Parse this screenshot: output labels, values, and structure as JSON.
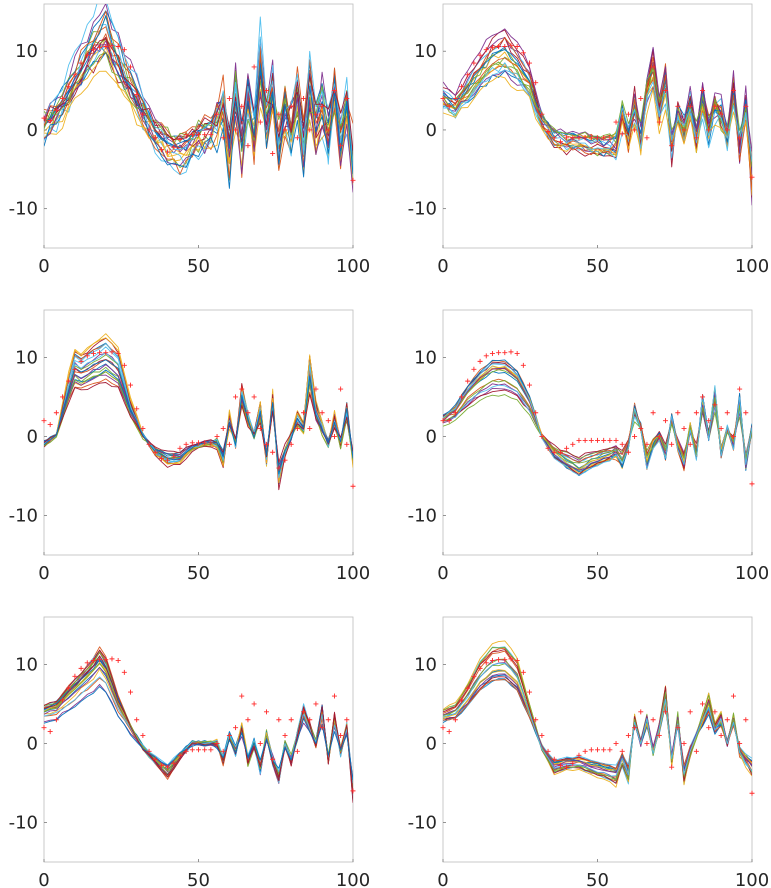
{
  "chart_data": [
    {
      "type": "line",
      "panel": "top-left",
      "xlim": [
        0,
        100
      ],
      "ylim": [
        -15,
        16
      ],
      "xticks": [
        "0",
        "50",
        "100"
      ],
      "yticks": [
        "10",
        "0",
        "-10"
      ],
      "ytick_values": [
        10,
        0,
        -10
      ],
      "n_series": 22,
      "spread": 3.4,
      "markers": "red plus",
      "observed": {
        "x": [
          0,
          2,
          4,
          6,
          8,
          10,
          12,
          14,
          16,
          18,
          20,
          22,
          24,
          26,
          28,
          30,
          32,
          34,
          36,
          38,
          40,
          42,
          44,
          46,
          48,
          50,
          52,
          54,
          56,
          58,
          60,
          62,
          64,
          66,
          68,
          70,
          72,
          74,
          76,
          78,
          80,
          82,
          84,
          86,
          88,
          90,
          92,
          94,
          96,
          98,
          100
        ],
        "y": [
          1.5,
          1.2,
          2.5,
          4,
          5.5,
          7,
          8.5,
          9.5,
          10.2,
          10.5,
          10.6,
          10.7,
          10.6,
          10.2,
          8,
          4.5,
          2,
          0,
          -1,
          -2.5,
          -2.8,
          -2.2,
          -1.2,
          -0.6,
          -0.6,
          -0.6,
          -0.6,
          -0.6,
          2,
          -1,
          4,
          0,
          3,
          -2,
          8,
          1,
          5,
          -3,
          2,
          0,
          3,
          -1,
          4,
          0,
          2,
          3,
          0,
          5,
          -2,
          4,
          -6.4
        ]
      },
      "mean": {
        "x": [
          0,
          5,
          10,
          15,
          18,
          20,
          22,
          25,
          30,
          35,
          40,
          45,
          50,
          55,
          58,
          60,
          62,
          64,
          66,
          68,
          70,
          72,
          74,
          76,
          78,
          80,
          82,
          84,
          86,
          88,
          90,
          92,
          94,
          96,
          98,
          100
        ],
        "y": [
          0,
          2.5,
          6,
          9.5,
          11.5,
          12,
          10,
          7.5,
          4,
          0,
          -2,
          -3,
          -1,
          -0.5,
          3,
          -3,
          5,
          -2,
          4,
          -1,
          8,
          0,
          5,
          -3,
          2,
          0,
          4,
          -2,
          5,
          0,
          3,
          -1,
          5,
          -2,
          3,
          -4
        ]
      }
    },
    {
      "type": "line",
      "panel": "top-right",
      "xlim": [
        0,
        100
      ],
      "ylim": [
        -15,
        16
      ],
      "xticks": [
        "0",
        "50",
        "100"
      ],
      "yticks": [
        "10",
        "0",
        "-10"
      ],
      "ytick_values": [
        10,
        0,
        -10
      ],
      "n_series": 20,
      "spread": 1.8,
      "markers": "red plus",
      "observed": {
        "x": [
          0,
          2,
          4,
          6,
          8,
          10,
          12,
          14,
          16,
          18,
          20,
          22,
          24,
          26,
          28,
          30,
          32,
          34,
          36,
          38,
          40,
          42,
          44,
          46,
          48,
          50,
          52,
          54,
          56,
          58,
          60,
          62,
          64,
          66,
          68,
          70,
          72,
          74,
          76,
          78,
          80,
          82,
          84,
          86,
          88,
          90,
          92,
          94,
          96,
          98,
          100
        ],
        "y": [
          4,
          3,
          4,
          5.5,
          7,
          8.5,
          9.5,
          10.2,
          10.5,
          10.6,
          10.6,
          10.7,
          10.6,
          9.8,
          8.5,
          6,
          2,
          -0.2,
          -1,
          -1.5,
          -1,
          -1,
          -1,
          -1,
          -1,
          -1,
          -1,
          -1,
          1,
          -0.5,
          2,
          0,
          4,
          -1,
          8,
          1,
          5,
          -2,
          3,
          0,
          3,
          -1,
          5,
          0,
          3,
          2,
          0,
          5,
          -1,
          3,
          -6
        ]
      },
      "mean": {
        "x": [
          0,
          4,
          8,
          12,
          16,
          20,
          24,
          28,
          32,
          36,
          40,
          44,
          48,
          52,
          56,
          58,
          60,
          62,
          64,
          66,
          68,
          70,
          72,
          74,
          76,
          78,
          80,
          82,
          84,
          86,
          88,
          90,
          92,
          94,
          96,
          98,
          100
        ],
        "y": [
          4,
          3,
          5,
          7,
          9,
          9.5,
          8,
          6,
          1,
          -1,
          -1.5,
          -1.5,
          -2,
          -2,
          -2,
          2,
          -1,
          3,
          -1,
          5,
          8,
          2,
          6,
          -2,
          2,
          0,
          3,
          -1,
          4,
          0,
          3,
          2,
          -1,
          5,
          -2,
          3,
          -6
        ]
      }
    },
    {
      "type": "line",
      "panel": "middle-left",
      "xlim": [
        0,
        100
      ],
      "ylim": [
        -15,
        16
      ],
      "xticks": [
        "0",
        "50",
        "100"
      ],
      "yticks": [
        "10",
        "0",
        "-10"
      ],
      "ytick_values": [
        10,
        0,
        -10
      ],
      "n_series": 22,
      "spread": 0.7,
      "markers": "red plus",
      "observed": {
        "x": [
          0,
          2,
          4,
          6,
          8,
          10,
          12,
          14,
          16,
          18,
          20,
          22,
          24,
          26,
          28,
          30,
          32,
          34,
          36,
          38,
          40,
          42,
          44,
          46,
          48,
          50,
          52,
          54,
          56,
          58,
          60,
          62,
          64,
          66,
          68,
          70,
          72,
          74,
          76,
          78,
          80,
          82,
          84,
          86,
          88,
          90,
          92,
          94,
          96,
          98,
          100
        ],
        "y": [
          2,
          1.5,
          3,
          5,
          7,
          8.5,
          9.5,
          10.2,
          10.5,
          10.6,
          10.6,
          10.7,
          10.5,
          9,
          6.5,
          3.5,
          1,
          -1,
          -2,
          -2.8,
          -3,
          -2.5,
          -1.5,
          -1,
          -0.8,
          -0.8,
          -0.8,
          -0.8,
          0,
          1,
          -1,
          5,
          6,
          3,
          5,
          1,
          -1,
          -2,
          -4,
          -3,
          -1,
          1,
          3,
          1,
          6,
          3,
          2,
          0,
          6,
          -1,
          -6.3
        ]
      },
      "mean": {
        "x": [
          0,
          4,
          8,
          10,
          12,
          16,
          20,
          24,
          28,
          32,
          36,
          40,
          44,
          48,
          52,
          56,
          58,
          60,
          62,
          64,
          66,
          68,
          70,
          72,
          74,
          76,
          78,
          80,
          82,
          84,
          86,
          88,
          90,
          92,
          94,
          96,
          98,
          100
        ],
        "y": [
          -1,
          0,
          6,
          8.5,
          8,
          9,
          9.8,
          8.5,
          3.5,
          0,
          -2,
          -3,
          -2.8,
          -1.5,
          -1,
          -1,
          -3,
          2,
          -1,
          5,
          2,
          0,
          3,
          -3,
          4,
          -5,
          -2,
          0,
          2,
          1,
          8,
          3,
          1,
          -1,
          2,
          -1,
          3,
          -3
        ]
      }
    },
    {
      "type": "line",
      "panel": "middle-right",
      "xlim": [
        0,
        100
      ],
      "ylim": [
        -15,
        16
      ],
      "xticks": [
        "0",
        "50",
        "100"
      ],
      "yticks": [
        "10",
        "0",
        "-10"
      ],
      "ytick_values": [
        10,
        0,
        -10
      ],
      "n_series": 20,
      "spread": 0.6,
      "markers": "red plus",
      "observed": {
        "x": [
          0,
          2,
          4,
          6,
          8,
          10,
          12,
          14,
          16,
          18,
          20,
          22,
          24,
          26,
          28,
          30,
          32,
          34,
          36,
          38,
          40,
          42,
          44,
          46,
          48,
          50,
          52,
          54,
          56,
          58,
          60,
          62,
          64,
          66,
          68,
          70,
          72,
          74,
          76,
          78,
          80,
          82,
          84,
          86,
          88,
          90,
          92,
          94,
          96,
          98,
          100
        ],
        "y": [
          2,
          2,
          3,
          5,
          7,
          8.5,
          9.5,
          10.2,
          10.5,
          10.6,
          10.6,
          10.7,
          10.5,
          9,
          6.5,
          3,
          0,
          -1.5,
          -2,
          -2,
          -1.5,
          -1,
          -0.5,
          -0.5,
          -0.5,
          -0.5,
          -0.5,
          -0.5,
          -0.5,
          -1,
          -2,
          0,
          1,
          -1,
          3,
          0,
          2,
          -1,
          3,
          1,
          -1,
          3,
          5,
          2,
          4,
          1,
          3,
          0,
          6,
          3,
          -6
        ]
      },
      "mean": {
        "x": [
          0,
          4,
          8,
          12,
          16,
          20,
          24,
          28,
          32,
          36,
          40,
          44,
          48,
          52,
          56,
          58,
          60,
          62,
          64,
          66,
          68,
          70,
          72,
          74,
          76,
          78,
          80,
          82,
          84,
          86,
          88,
          90,
          92,
          94,
          96,
          98,
          100
        ],
        "y": [
          2,
          3,
          5,
          6.5,
          7.5,
          7.5,
          6.5,
          4,
          0,
          -2,
          -3,
          -3.8,
          -3,
          -2.5,
          -2,
          -3,
          -1,
          3,
          1,
          -3,
          -1,
          0,
          -2,
          2,
          -1,
          -3,
          1,
          -2,
          4,
          0,
          5,
          -2,
          1,
          -1,
          4,
          -3,
          1
        ]
      }
    },
    {
      "type": "line",
      "panel": "bottom-left",
      "xlim": [
        0,
        100
      ],
      "ylim": [
        -15,
        16
      ],
      "xticks": [
        "0",
        "50",
        "100"
      ],
      "yticks": [
        "10",
        "0",
        "-10"
      ],
      "ytick_values": [
        10,
        0,
        -10
      ],
      "n_series": 22,
      "spread": 0.6,
      "markers": "red plus",
      "observed": {
        "x": [
          0,
          2,
          4,
          6,
          8,
          10,
          12,
          14,
          16,
          18,
          20,
          22,
          24,
          26,
          28,
          30,
          32,
          34,
          36,
          38,
          40,
          42,
          44,
          46,
          48,
          50,
          52,
          54,
          56,
          58,
          60,
          62,
          64,
          66,
          68,
          70,
          72,
          74,
          76,
          78,
          80,
          82,
          84,
          86,
          88,
          90,
          92,
          94,
          96,
          98,
          100
        ],
        "y": [
          2,
          1.5,
          3,
          5.5,
          7,
          8.5,
          9.5,
          10.2,
          10.5,
          10.6,
          10.6,
          10.7,
          10.5,
          9,
          6.5,
          3,
          1,
          -1,
          -2,
          -2.8,
          -3,
          -2.5,
          -1.5,
          -1,
          -0.8,
          -0.8,
          -0.8,
          -0.8,
          0,
          -1,
          1,
          2,
          6,
          3,
          5,
          0,
          4,
          -2,
          3,
          1,
          3,
          -1,
          4,
          3,
          5,
          2,
          3,
          6,
          1,
          3,
          -6
        ]
      },
      "mean": {
        "x": [
          0,
          4,
          8,
          12,
          16,
          18,
          20,
          24,
          28,
          32,
          36,
          40,
          44,
          48,
          52,
          56,
          58,
          60,
          62,
          64,
          66,
          68,
          70,
          72,
          74,
          76,
          78,
          80,
          82,
          84,
          86,
          88,
          90,
          92,
          94,
          96,
          98,
          100
        ],
        "y": [
          4,
          4.5,
          6,
          7.5,
          9,
          10,
          9,
          5,
          2,
          -0.5,
          -2,
          -3.5,
          -1.5,
          0,
          0,
          0,
          -2,
          1,
          -1,
          2,
          -2,
          0,
          -3,
          1,
          -2,
          -4,
          0,
          -2,
          1,
          4,
          2,
          0,
          4,
          -2,
          3,
          -1,
          2,
          -6
        ]
      }
    },
    {
      "type": "line",
      "panel": "bottom-right",
      "xlim": [
        0,
        100
      ],
      "ylim": [
        -15,
        16
      ],
      "xticks": [
        "0",
        "50",
        "100"
      ],
      "yticks": [
        "10",
        "0",
        "-10"
      ],
      "ytick_values": [
        10,
        0,
        -10
      ],
      "n_series": 20,
      "spread": 0.5,
      "markers": "red plus",
      "observed": {
        "x": [
          0,
          2,
          4,
          6,
          8,
          10,
          12,
          14,
          16,
          18,
          20,
          22,
          24,
          26,
          28,
          30,
          32,
          34,
          36,
          38,
          40,
          42,
          44,
          46,
          48,
          50,
          52,
          54,
          56,
          58,
          60,
          62,
          64,
          66,
          68,
          70,
          72,
          74,
          76,
          78,
          80,
          82,
          84,
          86,
          88,
          90,
          92,
          94,
          96,
          98,
          100
        ],
        "y": [
          2,
          1.5,
          3,
          5.5,
          7,
          8.5,
          9.5,
          10.2,
          10.5,
          10.6,
          10.6,
          10.7,
          10.5,
          9,
          6.5,
          3,
          1,
          -1,
          -2,
          -2.8,
          -3,
          -2.5,
          -1.5,
          -1,
          -0.8,
          -0.8,
          -0.8,
          -0.8,
          0,
          -1,
          1,
          2,
          4,
          0,
          3,
          1,
          4,
          -3,
          2,
          0,
          4,
          -1,
          5,
          2,
          4,
          1,
          3,
          6,
          0,
          3,
          -6.3
        ]
      },
      "mean": {
        "x": [
          0,
          4,
          8,
          12,
          16,
          20,
          24,
          28,
          32,
          36,
          40,
          44,
          48,
          52,
          56,
          58,
          60,
          62,
          64,
          66,
          68,
          70,
          72,
          74,
          76,
          78,
          80,
          82,
          84,
          86,
          88,
          90,
          92,
          94,
          96,
          98,
          100
        ],
        "y": [
          3.5,
          4,
          6,
          8.5,
          10,
          10.2,
          8.5,
          4,
          -0.5,
          -3,
          -2.5,
          -2.5,
          -3,
          -3.5,
          -4,
          -2,
          -4,
          3,
          0,
          3,
          -1,
          2,
          6,
          -2,
          3,
          -4,
          -1,
          1,
          3,
          5,
          2,
          3,
          0,
          3,
          -1,
          -2,
          -3
        ]
      }
    }
  ],
  "colors": {
    "palette": [
      "#0072bd",
      "#d95319",
      "#edb120",
      "#7e2f8e",
      "#77ac30",
      "#4dbeee",
      "#a2142f"
    ],
    "observed_marker": "#ff2a2a",
    "axes_frame": "#bdbdbd",
    "tick_text": "#262626"
  }
}
